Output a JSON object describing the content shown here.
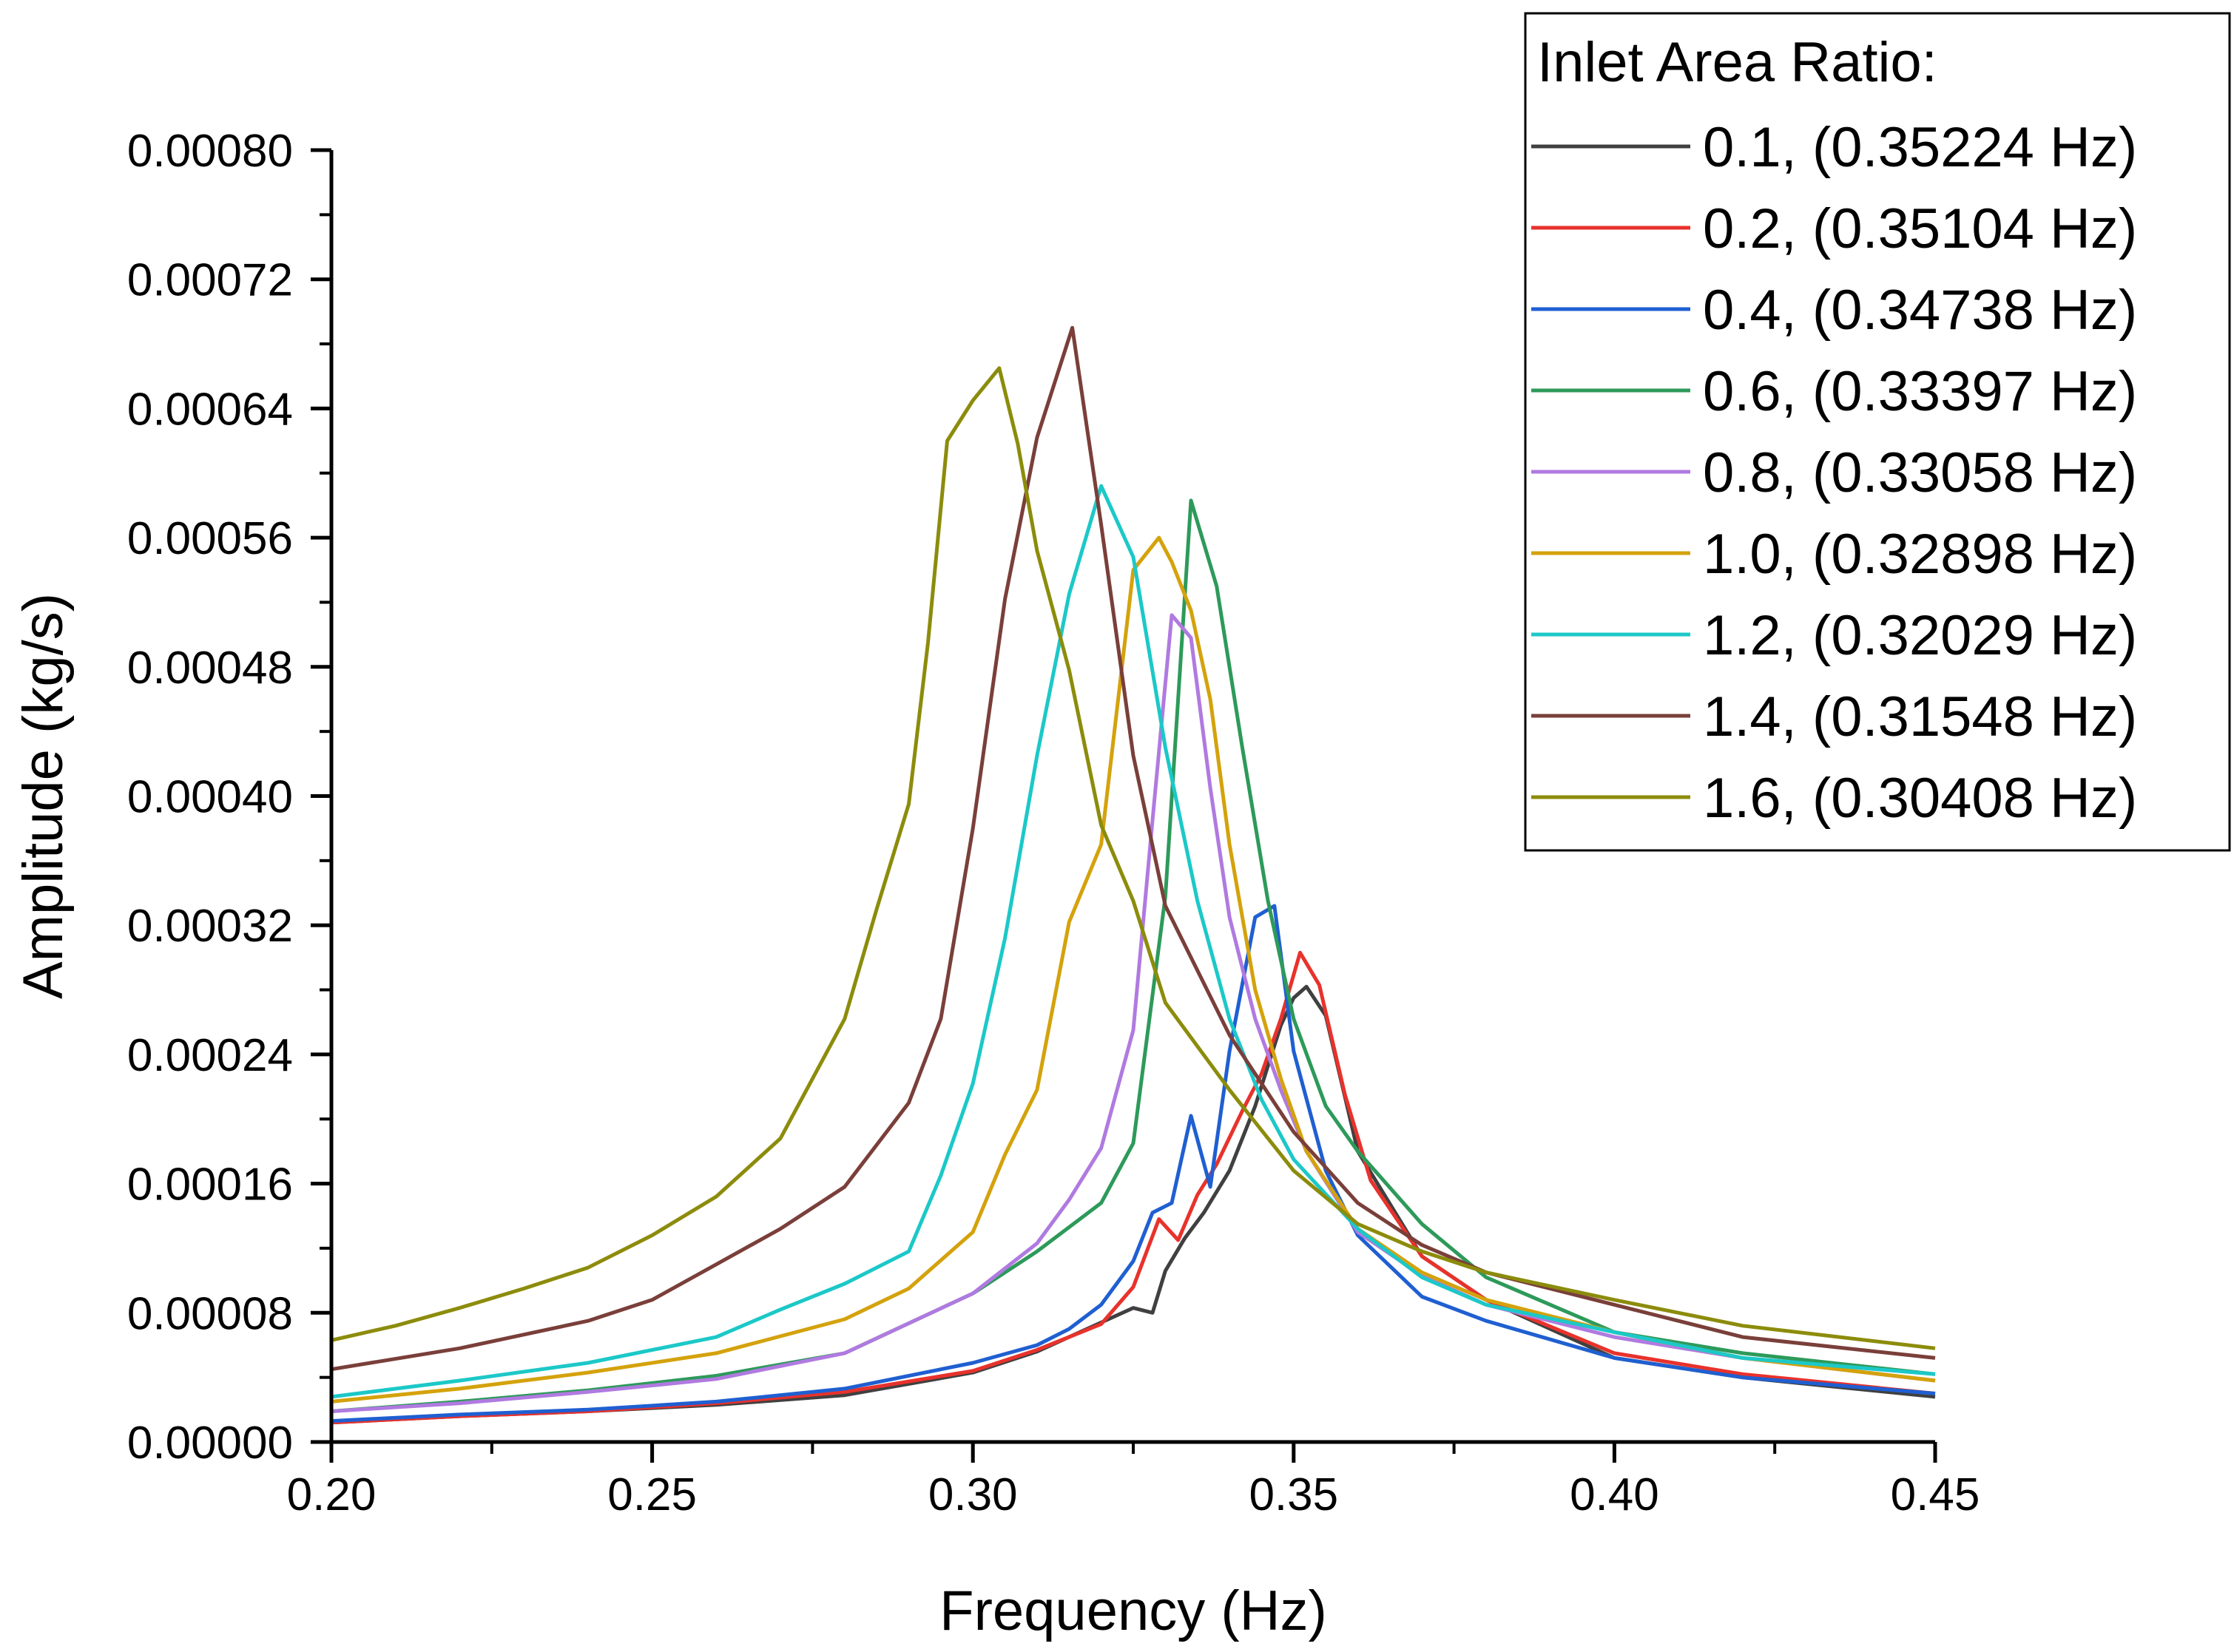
{
  "chart_data": {
    "type": "line",
    "title": "",
    "xlabel": "Frequency (Hz)",
    "ylabel": "Amplitude (kg/s)",
    "xlim": [
      0.2,
      0.45
    ],
    "ylim": [
      0.0,
      0.0008
    ],
    "x_ticks": [
      0.2,
      0.25,
      0.3,
      0.35,
      0.4,
      0.45
    ],
    "x_tick_labels": [
      "0.20",
      "0.25",
      "0.30",
      "0.35",
      "0.40",
      "0.45"
    ],
    "y_ticks": [
      0,
      8e-05,
      0.00016,
      0.00024,
      0.00032,
      0.0004,
      0.00048,
      0.00056,
      0.00064,
      0.00072,
      0.0008
    ],
    "y_tick_labels": [
      "0.00000",
      "0.00008",
      "0.00016",
      "0.00024",
      "0.00032",
      "0.00040",
      "0.00048",
      "0.00056",
      "0.00064",
      "0.00072",
      "0.00080"
    ],
    "grid": false,
    "legend_title": "Inlet Area Ratio:",
    "legend_position": "top-right",
    "series": [
      {
        "name": "0.1, (0.35224 Hz)",
        "color": "#404040",
        "x": [
          0.2,
          0.22,
          0.24,
          0.26,
          0.28,
          0.3,
          0.31,
          0.32,
          0.325,
          0.328,
          0.33,
          0.333,
          0.336,
          0.34,
          0.344,
          0.348,
          0.35,
          0.352,
          0.355,
          0.36,
          0.37,
          0.38,
          0.4,
          0.42,
          0.45
        ],
        "y": [
          1.2e-05,
          1.6e-05,
          1.9e-05,
          2.3e-05,
          2.9e-05,
          4.3e-05,
          5.6e-05,
          7.4e-05,
          8.3e-05,
          8e-05,
          0.000106,
          0.000126,
          0.000142,
          0.000168,
          0.000208,
          0.000258,
          0.000275,
          0.000282,
          0.000264,
          0.00018,
          0.000115,
          8.8e-05,
          5.2e-05,
          4e-05,
          2.8e-05
        ]
      },
      {
        "name": "0.2, (0.35104 Hz)",
        "color": "#e8322c",
        "x": [
          0.2,
          0.22,
          0.24,
          0.26,
          0.28,
          0.3,
          0.31,
          0.32,
          0.325,
          0.329,
          0.332,
          0.335,
          0.338,
          0.342,
          0.345,
          0.348,
          0.351,
          0.354,
          0.358,
          0.362,
          0.37,
          0.38,
          0.4,
          0.42,
          0.45
        ],
        "y": [
          1.2e-05,
          1.6e-05,
          1.9e-05,
          2.4e-05,
          3.1e-05,
          4.4e-05,
          5.7e-05,
          7.3e-05,
          9.6e-05,
          0.000138,
          0.000125,
          0.000153,
          0.000172,
          0.000205,
          0.000228,
          0.000262,
          0.000303,
          0.000283,
          0.000215,
          0.000162,
          0.000115,
          8.8e-05,
          5.5e-05,
          4.2e-05,
          3e-05
        ]
      },
      {
        "name": "0.4, (0.34738 Hz)",
        "color": "#1f5fd1",
        "x": [
          0.2,
          0.22,
          0.24,
          0.26,
          0.28,
          0.3,
          0.31,
          0.315,
          0.32,
          0.325,
          0.328,
          0.331,
          0.334,
          0.337,
          0.34,
          0.344,
          0.347,
          0.35,
          0.355,
          0.36,
          0.37,
          0.38,
          0.4,
          0.42,
          0.45
        ],
        "y": [
          1.3e-05,
          1.7e-05,
          2e-05,
          2.5e-05,
          3.3e-05,
          4.9e-05,
          6e-05,
          7e-05,
          8.5e-05,
          0.000112,
          0.000142,
          0.000148,
          0.000202,
          0.000158,
          0.000242,
          0.000325,
          0.000332,
          0.000242,
          0.000168,
          0.000128,
          9e-05,
          7.5e-05,
          5.2e-05,
          4e-05,
          3e-05
        ]
      },
      {
        "name": "0.6, (0.33397 Hz)",
        "color": "#2d9a5a",
        "x": [
          0.2,
          0.22,
          0.24,
          0.26,
          0.28,
          0.3,
          0.31,
          0.32,
          0.325,
          0.33,
          0.334,
          0.338,
          0.342,
          0.346,
          0.35,
          0.355,
          0.36,
          0.37,
          0.38,
          0.4,
          0.42,
          0.45
        ],
        "y": [
          1.9e-05,
          2.5e-05,
          3.2e-05,
          4.1e-05,
          5.5e-05,
          9.2e-05,
          0.000118,
          0.000148,
          0.000185,
          0.000338,
          0.000583,
          0.00053,
          0.00043,
          0.000335,
          0.000262,
          0.000208,
          0.00018,
          0.000135,
          0.000102,
          6.8e-05,
          5.5e-05,
          4.2e-05
        ]
      },
      {
        "name": "0.8, (0.33058 Hz)",
        "color": "#b07ae0",
        "x": [
          0.2,
          0.22,
          0.24,
          0.26,
          0.28,
          0.3,
          0.31,
          0.315,
          0.32,
          0.325,
          0.328,
          0.331,
          0.334,
          0.337,
          0.34,
          0.344,
          0.348,
          0.352,
          0.36,
          0.37,
          0.38,
          0.4,
          0.42,
          0.45
        ],
        "y": [
          1.9e-05,
          2.4e-05,
          3.1e-05,
          3.9e-05,
          5.5e-05,
          9.2e-05,
          0.000123,
          0.00015,
          0.000182,
          0.000255,
          0.000385,
          0.000512,
          0.000498,
          0.000405,
          0.000325,
          0.000262,
          0.000218,
          0.00018,
          0.00013,
          0.000103,
          8.5e-05,
          6.5e-05,
          5.2e-05,
          3.8e-05
        ]
      },
      {
        "name": "1.0, (0.32898 Hz)",
        "color": "#d4a20c",
        "x": [
          0.2,
          0.22,
          0.24,
          0.26,
          0.28,
          0.29,
          0.3,
          0.305,
          0.31,
          0.315,
          0.32,
          0.325,
          0.329,
          0.331,
          0.334,
          0.337,
          0.34,
          0.344,
          0.348,
          0.352,
          0.36,
          0.37,
          0.38,
          0.4,
          0.42,
          0.45
        ],
        "y": [
          2.5e-05,
          3.3e-05,
          4.3e-05,
          5.5e-05,
          7.6e-05,
          9.5e-05,
          0.00013,
          0.000178,
          0.000218,
          0.000322,
          0.00037,
          0.00054,
          0.00056,
          0.000545,
          0.000515,
          0.00046,
          0.00037,
          0.00028,
          0.000225,
          0.00018,
          0.000132,
          0.000105,
          8.8e-05,
          6.8e-05,
          5.2e-05,
          3.8e-05
        ]
      },
      {
        "name": "1.2, (0.32029 Hz)",
        "color": "#1cc8c8",
        "x": [
          0.2,
          0.22,
          0.24,
          0.26,
          0.27,
          0.28,
          0.29,
          0.295,
          0.3,
          0.305,
          0.31,
          0.315,
          0.32,
          0.325,
          0.33,
          0.335,
          0.34,
          0.345,
          0.35,
          0.36,
          0.37,
          0.38,
          0.4,
          0.42,
          0.45
        ],
        "y": [
          2.8e-05,
          3.8e-05,
          4.9e-05,
          6.5e-05,
          8.2e-05,
          9.8e-05,
          0.000118,
          0.000165,
          0.000222,
          0.000312,
          0.000425,
          0.000525,
          0.000592,
          0.000548,
          0.00043,
          0.000335,
          0.000262,
          0.000212,
          0.000175,
          0.000132,
          0.000102,
          8.5e-05,
          6.8e-05,
          5.2e-05,
          4.2e-05
        ]
      },
      {
        "name": "1.4, (0.31548 Hz)",
        "color": "#7a3f3a",
        "x": [
          0.2,
          0.22,
          0.24,
          0.25,
          0.26,
          0.27,
          0.28,
          0.29,
          0.295,
          0.3,
          0.305,
          0.31,
          0.3155,
          0.32,
          0.325,
          0.33,
          0.34,
          0.35,
          0.36,
          0.37,
          0.38,
          0.4,
          0.42,
          0.45
        ],
        "y": [
          4.5e-05,
          5.8e-05,
          7.5e-05,
          8.8e-05,
          0.00011,
          0.000132,
          0.000158,
          0.00021,
          0.000262,
          0.00038,
          0.000522,
          0.000622,
          0.00069,
          0.000568,
          0.000425,
          0.000332,
          0.000252,
          0.000192,
          0.000148,
          0.000122,
          0.000105,
          8.5e-05,
          6.5e-05,
          5.2e-05
        ]
      },
      {
        "name": "1.6, (0.30408 Hz)",
        "color": "#8c8c0c",
        "x": [
          0.2,
          0.21,
          0.22,
          0.23,
          0.24,
          0.25,
          0.26,
          0.27,
          0.275,
          0.28,
          0.285,
          0.29,
          0.293,
          0.296,
          0.3,
          0.3041,
          0.307,
          0.31,
          0.315,
          0.32,
          0.325,
          0.33,
          0.34,
          0.35,
          0.36,
          0.37,
          0.38,
          0.4,
          0.42,
          0.45
        ],
        "y": [
          6.3e-05,
          7.2e-05,
          8.3e-05,
          9.5e-05,
          0.000108,
          0.000128,
          0.000152,
          0.000188,
          0.000225,
          0.000262,
          0.00033,
          0.000395,
          0.000495,
          0.00062,
          0.000645,
          0.000665,
          0.000618,
          0.000552,
          0.000478,
          0.000382,
          0.000335,
          0.000272,
          0.000218,
          0.000168,
          0.000135,
          0.000118,
          0.000105,
          8.8e-05,
          7.2e-05,
          5.8e-05
        ]
      }
    ]
  }
}
